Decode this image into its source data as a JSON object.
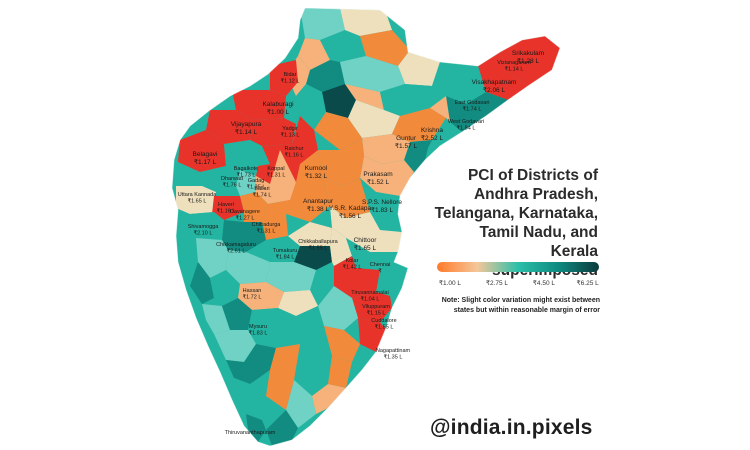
{
  "title_lines": [
    "PCI of Districts of",
    "Andhra Pradesh,",
    "Telangana, Karnataka,",
    "Tamil Nadu, and Kerala",
    "superimposed"
  ],
  "legend": {
    "ticks": [
      "₹1.00 L",
      "₹2.75 L",
      "₹4.50 L",
      "₹6.25 L"
    ],
    "colors": [
      "#ff7a2a",
      "#f4c79a",
      "#2cbfa9",
      "#0f8a80",
      "#0b3a3c"
    ]
  },
  "note": "Note: Slight color variation might exist between states but within reasonable margin of error",
  "handle": "@india.in.pixels",
  "colors": {
    "red": "#e8332a",
    "orange": "#f28a3c",
    "light_orange": "#f6b27a",
    "beige": "#efe0bd",
    "aqua": "#6fd2c4",
    "teal": "#24b5a2",
    "dark_teal": "#128c80",
    "deep": "#0b4a4a"
  },
  "districts": [
    {
      "name": "Srikakulam",
      "value": "₹1.28 L"
    },
    {
      "name": "Vizianagaram",
      "value": "₹1.14 L"
    },
    {
      "name": "Visakhapatnam",
      "value": "₹2.06 L"
    },
    {
      "name": "East Godavari",
      "value": "₹1.74 L"
    },
    {
      "name": "West Godavari",
      "value": "₹1.84 L"
    },
    {
      "name": "Krishna",
      "value": "₹2.52 L"
    },
    {
      "name": "Guntur",
      "value": "₹1.57 L"
    },
    {
      "name": "Prakasam",
      "value": "₹1.52 L"
    },
    {
      "name": "S.P.S. Nellore",
      "value": "₹1.83 L"
    },
    {
      "name": "Y.S.R. Kadapa",
      "value": "₹1.56 L"
    },
    {
      "name": "Anantapur",
      "value": "₹1.38 L"
    },
    {
      "name": "Kurnool",
      "value": "₹1.32 L"
    },
    {
      "name": "Chittoor",
      "value": "₹1.65 L"
    },
    {
      "name": "Bidar",
      "value": "₹1.12 L"
    },
    {
      "name": "Kalaburagi",
      "value": "₹1.00 L"
    },
    {
      "name": "Vijayapura",
      "value": "₹1.14 L"
    },
    {
      "name": "Yadgir",
      "value": "₹1.13 L"
    },
    {
      "name": "Raichur",
      "value": "₹1.16 L"
    },
    {
      "name": "Belagavi",
      "value": "₹1.17 L"
    },
    {
      "name": "Bagalkote",
      "value": "₹1.73 L"
    },
    {
      "name": "Koppal",
      "value": "₹1.31 L"
    },
    {
      "name": "Dharwad",
      "value": "₹1.76 L"
    },
    {
      "name": "Gadag",
      "value": "₹1.35 L"
    },
    {
      "name": "Ballari",
      "value": "₹1.74 L"
    },
    {
      "name": "Uttara Kannada",
      "value": "₹1.65 L"
    },
    {
      "name": "Haveri",
      "value": "₹1.16 L"
    },
    {
      "name": "Davanagere",
      "value": "₹1.27 L"
    },
    {
      "name": "Chitradurga",
      "value": "₹1.31 L"
    },
    {
      "name": "Shivamogga",
      "value": "₹2.10 L"
    },
    {
      "name": "Chikkamagaluru",
      "value": "₹2.61 L"
    },
    {
      "name": "Tumakuru",
      "value": "₹1.84 L"
    },
    {
      "name": "Chikkaballapura",
      "value": "₹1.55 L"
    },
    {
      "name": "Hassan",
      "value": "₹1.72 L"
    },
    {
      "name": "Kolar",
      "value": "₹1.42 L"
    },
    {
      "name": "Mysuru",
      "value": "₹1.83 L"
    },
    {
      "name": "Chennai",
      "value": "₹"
    },
    {
      "name": "Tiruvannamalai",
      "value": "₹1.04 L"
    },
    {
      "name": "Viluppuram",
      "value": "₹1.15 L"
    },
    {
      "name": "Cuddalore",
      "value": "₹1.55 L"
    },
    {
      "name": "Nagapattinam",
      "value": "₹1.35 L"
    },
    {
      "name": "Thiruvananthapuram",
      "value": ""
    }
  ]
}
